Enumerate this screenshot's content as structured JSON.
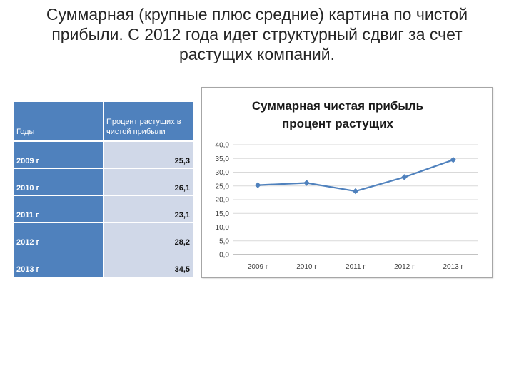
{
  "slide": {
    "title": "Суммарная (крупные плюс средние) картина по чистой прибыли. С 2012 года идет структурный сдвиг за счет растущих компаний."
  },
  "table": {
    "headers": [
      "Годы",
      "Процент растущих в чистой прибыли"
    ],
    "rows": [
      {
        "year": "2009 г",
        "value": "25,3"
      },
      {
        "year": "2010 г",
        "value": "26,1"
      },
      {
        "year": "2011 г",
        "value": "23,1"
      },
      {
        "year": "2012 г",
        "value": "28,2"
      },
      {
        "year": "2013 г",
        "value": "34,5"
      }
    ]
  },
  "chart_data": {
    "type": "line",
    "title": "Суммарная чистая прибыль процент растущих",
    "title_lines": [
      "Суммарная чистая прибыль",
      "процент растущих"
    ],
    "categories": [
      "2009 г",
      "2010 г",
      "2011 г",
      "2012 г",
      "2013 г"
    ],
    "values": [
      25.3,
      26.1,
      23.1,
      28.2,
      34.5
    ],
    "ylim": [
      0,
      40
    ],
    "yticks": [
      "0,0",
      "5,0",
      "10,0",
      "15,0",
      "20,0",
      "25,0",
      "30,0",
      "35,0",
      "40,0"
    ],
    "xlabel": "",
    "ylabel": "",
    "grid": true,
    "legend": "none",
    "colors": {
      "line": "#4f81bd",
      "grid": "#d9d9d9",
      "axis": "#868686"
    }
  }
}
